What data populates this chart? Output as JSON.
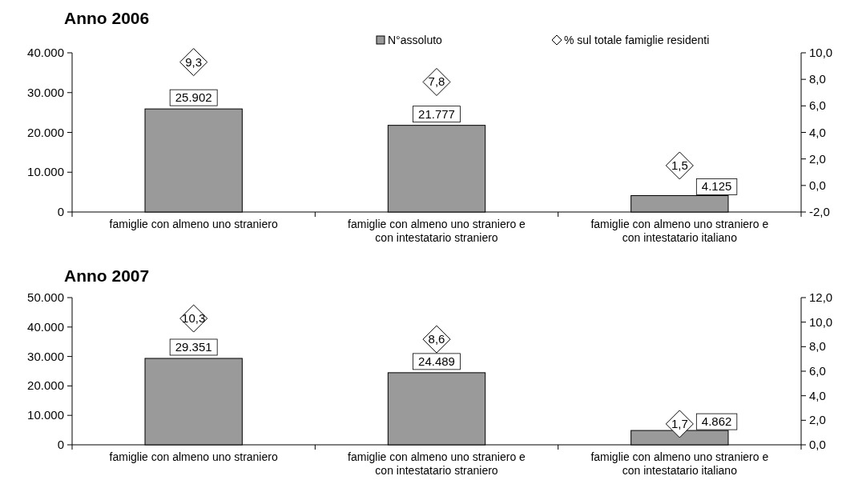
{
  "chart_data": [
    {
      "type": "bar",
      "title": "Anno 2006",
      "categories": [
        "famiglie con almeno uno straniero",
        "famiglie con almeno uno straniero e con intestatario straniero",
        "famiglie con almeno uno straniero e con intestatario italiano"
      ],
      "series": [
        {
          "name": "N°assoluto",
          "color": "#9a9a9a",
          "values": [
            25902,
            21777,
            4125
          ],
          "value_labels": [
            "25.902",
            "21.777",
            "4.125"
          ]
        },
        {
          "name": "% sul totale famiglie residenti",
          "type": "scatter",
          "axis": "y2",
          "marker": "diamond",
          "color": "#000000",
          "values": [
            9.3,
            7.8,
            1.5
          ],
          "value_labels": [
            "9,3",
            "7,8",
            "1,5"
          ]
        }
      ],
      "ylim": [
        0,
        40000
      ],
      "yticks": [
        0,
        {
          "value": 10000,
          "label": "10.000"
        },
        {
          "value": 20000,
          "label": "20.000"
        },
        {
          "value": 30000,
          "label": "30.000"
        },
        {
          "value": 40000,
          "label": "40.000"
        }
      ],
      "y2lim": [
        -2,
        10
      ],
      "y2ticks": [
        {
          "value": -2,
          "label": "-2,0"
        },
        {
          "value": 0,
          "label": "0,0"
        },
        {
          "value": 2,
          "label": "2,0"
        },
        {
          "value": 4,
          "label": "4,0"
        },
        {
          "value": 6,
          "label": "6,0"
        },
        {
          "value": 8,
          "label": "8,0"
        },
        {
          "value": 10,
          "label": "10,0"
        }
      ],
      "legend": "top",
      "grid": false
    },
    {
      "type": "bar",
      "title": "Anno 2007",
      "categories": [
        "famiglie con almeno uno straniero",
        "famiglie con almeno uno straniero e con intestatario straniero",
        "famiglie con almeno uno straniero e con intestatario italiano"
      ],
      "series": [
        {
          "color": "#9a9a9a",
          "values": [
            29351,
            24489,
            4862
          ],
          "value_labels": [
            "29.351",
            "24.489",
            "4.862"
          ]
        },
        {
          "type": "scatter",
          "axis": "y2",
          "marker": "diamond",
          "color": "#000000",
          "values": [
            10.3,
            8.6,
            1.7
          ],
          "value_labels": [
            "10,3",
            "8,6",
            "1,7"
          ]
        }
      ],
      "ylim": [
        0,
        50000
      ],
      "yticks": [
        0,
        {
          "value": 10000,
          "label": "10.000"
        },
        {
          "value": 20000,
          "label": "20.000"
        },
        {
          "value": 30000,
          "label": "30.000"
        },
        {
          "value": 40000,
          "label": "40.000"
        },
        {
          "value": 50000,
          "label": "50.000"
        }
      ],
      "y2lim": [
        0,
        12
      ],
      "y2ticks": [
        {
          "value": 0,
          "label": "0,0"
        },
        {
          "value": 2,
          "label": "2,0"
        },
        {
          "value": 4,
          "label": "4,0"
        },
        {
          "value": 6,
          "label": "6,0"
        },
        {
          "value": 8,
          "label": "8,0"
        },
        {
          "value": 10,
          "label": "10,0"
        },
        {
          "value": 12,
          "label": "12,0"
        }
      ],
      "legend": false,
      "grid": false
    }
  ]
}
